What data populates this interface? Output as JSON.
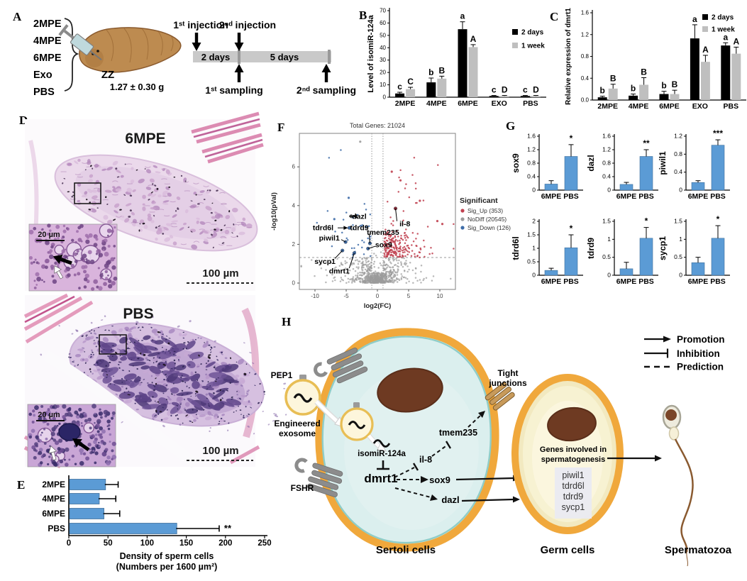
{
  "colors": {
    "bar_black": "#000000",
    "bar_gray": "#BFBFBF",
    "bar_blue": "#5B9BD5",
    "bar_blue_edge": "#41719C",
    "sig_up": "#C0404F",
    "no_diff": "#9B9B9B",
    "sig_down": "#3E6CA8",
    "membrane_orange": "#F0A83C",
    "sertoli_cytoplasm": "#CFE9E8",
    "germ_cytoplasm": "#F7F2D2",
    "nucleus_brown": "#6E3A22",
    "exosome_fill": "#FDF6DC",
    "exosome_border": "#E8BE55",
    "receptor_gray": "#8C8C8C"
  },
  "panels": {
    "a": "A",
    "b": "B",
    "c": "C",
    "d": "D",
    "e": "E",
    "f": "F",
    "g": "G",
    "h": "H"
  },
  "panel_a": {
    "groups": [
      "2MPE",
      "4MPE",
      "6MPE",
      "Exo",
      "PBS"
    ],
    "genotype": "ZZ",
    "weight": "1.27 ± 0.30 g",
    "timeline": {
      "injection1": "1ˢᵗ injection",
      "injection2": "2ⁿᵈ injection",
      "sampling1": "1ˢᵗ sampling",
      "sampling2": "2ⁿᵈ sampling",
      "phase1": "2 days",
      "phase2": "5 days"
    }
  },
  "panel_d": {
    "top_title": "6MPE",
    "bottom_title": "PBS",
    "inset_scale_top": "20 µm",
    "inset_scale_bottom": "20 µm",
    "scale_bar_top": "100 µm",
    "scale_bar_bottom": "100 µm"
  },
  "panel_h": {
    "pep1": "PEP1",
    "engineered_exosome_line1": "Engineered",
    "engineered_exosome_line2": "exosome",
    "fshr": "FSHR",
    "isomir": "isomiR-124a",
    "dmrt1": "dmrt1",
    "il8": "il-8",
    "tmem235": "tmem235",
    "tight_junctions_line1": "Tight",
    "tight_junctions_line2": "junctions",
    "sox9": "sox9",
    "dazl": "dazl",
    "genes_line1": "Genes involved in",
    "genes_line2": "spermatogenesis",
    "gene_list": [
      "piwil1",
      "tdrd6l",
      "tdrd9",
      "sycp1"
    ],
    "sertoli_label": "Sertoli cells",
    "germ_label": "Germ cells",
    "sperm_label": "Spermatozoa",
    "legend": [
      {
        "symbol": "arrow",
        "label": "Promotion"
      },
      {
        "symbol": "tbar",
        "label": "Inhibition"
      },
      {
        "symbol": "dashed",
        "label": "Prediction"
      }
    ]
  },
  "chart_data": [
    {
      "id": "B",
      "type": "bar",
      "ylabel": "Level of isomiR-124a",
      "categories": [
        "2MPE",
        "4MPE",
        "6MPE",
        "EXO",
        "PBS"
      ],
      "series": [
        {
          "name": "2 days",
          "color": "#000000",
          "values": [
            3,
            12,
            55,
            1,
            1
          ],
          "errors": [
            1,
            3.5,
            6,
            0.4,
            0.4
          ],
          "letters": [
            "c",
            "b",
            "a",
            "c",
            "c"
          ]
        },
        {
          "name": "1 week",
          "color": "#BFBFBF",
          "values": [
            6.5,
            15,
            40.5,
            1,
            1
          ],
          "errors": [
            1.5,
            2,
            2,
            0.4,
            0.4
          ],
          "letters": [
            "C",
            "B",
            "A",
            "D",
            "D"
          ]
        }
      ],
      "ylim": [
        0,
        70
      ],
      "yticks": [
        0,
        10,
        20,
        30,
        40,
        50,
        60,
        70
      ],
      "tick_decimals": 0,
      "legend_position": "top-right",
      "grid": false
    },
    {
      "id": "C",
      "type": "bar",
      "ylabel": "Relative expression of dmrt1",
      "categories": [
        "2MPE",
        "4MPE",
        "6MPE",
        "EXO",
        "PBS"
      ],
      "series": [
        {
          "name": "2 days",
          "color": "#000000",
          "values": [
            0.05,
            0.08,
            0.11,
            1.13,
            1.0
          ],
          "errors": [
            0.02,
            0.03,
            0.05,
            0.25,
            0.05
          ],
          "letters": [
            "b",
            "b",
            "b",
            "a",
            "a"
          ]
        },
        {
          "name": "1 week",
          "color": "#BFBFBF",
          "values": [
            0.21,
            0.28,
            0.11,
            0.7,
            0.85
          ],
          "errors": [
            0.08,
            0.13,
            0.07,
            0.12,
            0.12
          ],
          "letters": [
            "B",
            "B",
            "B",
            "A",
            "A"
          ]
        }
      ],
      "ylim": [
        0,
        1.6
      ],
      "yticks": [
        0,
        0.4,
        0.8,
        1.2,
        1.6
      ],
      "tick_decimals": 1,
      "legend_position": "top-right",
      "grid": false
    },
    {
      "id": "E",
      "type": "bar",
      "orientation": "horizontal",
      "categories": [
        "2MPE",
        "4MPE",
        "6MPE",
        "PBS"
      ],
      "values": [
        46,
        38,
        44,
        137
      ],
      "errors": [
        17,
        22,
        21,
        55
      ],
      "sig": [
        "",
        "",
        "",
        "**"
      ],
      "xlim": [
        0,
        250
      ],
      "xticks": [
        0,
        50,
        100,
        150,
        200,
        250
      ],
      "xlabel_line1": "Density of sperm cells",
      "xlabel_line2": "(Numbers per 1600 µm²)",
      "grid": false
    },
    {
      "id": "F",
      "type": "scatter",
      "subtype": "volcano",
      "title": "Total Genes: 21024",
      "xlabel": "log2(FC)",
      "ylabel": "-log10(pVal)",
      "xlim": [
        -12.5,
        12.5
      ],
      "xticks": [
        -10,
        -5,
        0,
        5,
        10
      ],
      "ylim": [
        0,
        7.7
      ],
      "yticks": [
        0,
        2,
        4,
        6
      ],
      "fc_threshold": 0.9,
      "pval_threshold": 1.32,
      "legend_title": "Significant",
      "legend": [
        {
          "label": "Sig_Up (353)",
          "color": "#C0404F"
        },
        {
          "label": "NoDiff (20545)",
          "color": "#9B9B9B"
        },
        {
          "label": "Sig_Down (126)",
          "color": "#3E6CA8"
        }
      ],
      "display_points": {
        "nodiff": 950,
        "extra_up": 130,
        "seed": 77
      },
      "outliers": [
        {
          "x": -2.75,
          "y": 7.3,
          "class": "nodiff"
        },
        {
          "x": 2.3,
          "y": 5.75,
          "class": "up"
        },
        {
          "x": 3.7,
          "y": 5.3,
          "class": "up"
        },
        {
          "x": 6.8,
          "y": 4.25,
          "class": "up"
        },
        {
          "x": -4.6,
          "y": 4.4,
          "class": "down"
        },
        {
          "x": -6.9,
          "y": 3.3,
          "class": "down"
        },
        {
          "x": 9.6,
          "y": 3.2,
          "class": "up"
        },
        {
          "x": 10.4,
          "y": 3.05,
          "class": "up"
        }
      ],
      "gene_labels": [
        {
          "name": "dazl",
          "lx": -2.9,
          "ly": 3.45,
          "px": -4.2,
          "py": 3.45,
          "style": "arrowleft",
          "pcolor": "#555555"
        },
        {
          "name": "il-8",
          "lx": 4.4,
          "ly": 3.05,
          "px": 2.9,
          "py": 3.85,
          "style": "line",
          "pcolor": "#8B2E3C"
        },
        {
          "name": "tdrd6l",
          "lx": -8.7,
          "ly": 2.85,
          "px": -4.5,
          "py": 2.85,
          "style": "arrowright",
          "pcolor": "#3E6CA8"
        },
        {
          "name": "tdrd9",
          "lx": -2.9,
          "ly": 2.85,
          "style": "none"
        },
        {
          "name": "tmem235",
          "lx": 0.9,
          "ly": 2.62,
          "px": -1.2,
          "py": 2.05,
          "style": "line",
          "pcolor": "#3E6CA8"
        },
        {
          "name": "piwil1",
          "lx": -7.7,
          "ly": 2.32,
          "px": -5.1,
          "py": 2.12,
          "style": "line",
          "pcolor": "#3E6CA8"
        },
        {
          "name": "sox9",
          "lx": 1.0,
          "ly": 1.98,
          "px": -1.5,
          "py": 1.78,
          "style": "line",
          "pcolor": "#3E6CA8"
        },
        {
          "name": "sycp1",
          "lx": -8.4,
          "ly": 1.12,
          "px": -5.6,
          "py": 1.68,
          "style": "line",
          "pcolor": "#3E6CA8"
        },
        {
          "name": "dmrt1",
          "lx": -6.1,
          "ly": 0.62,
          "px": -3.7,
          "py": 1.55,
          "style": "line",
          "pcolor": "#3E6CA8"
        }
      ]
    },
    {
      "id": "G",
      "type": "bar",
      "subtype": "mini-grid",
      "categories": [
        "6MPE",
        "PBS"
      ],
      "bar_color": "#5B9BD5",
      "charts": [
        {
          "gene": "sox9",
          "ylim": [
            0,
            1.6
          ],
          "yticks": [
            0,
            0.4,
            0.8,
            1.2,
            1.6
          ],
          "values": [
            0.18,
            1.0
          ],
          "errors": [
            0.1,
            0.35
          ],
          "sig": "*"
        },
        {
          "gene": "dazl",
          "ylim": [
            0,
            1.6
          ],
          "yticks": [
            0,
            0.4,
            0.8,
            1.2,
            1.6
          ],
          "values": [
            0.17,
            1.0
          ],
          "errors": [
            0.06,
            0.2
          ],
          "sig": "**"
        },
        {
          "gene": "piwil1",
          "ylim": [
            0,
            1.2
          ],
          "yticks": [
            0,
            0.4,
            0.8,
            1.2
          ],
          "values": [
            0.17,
            1.0
          ],
          "errors": [
            0.04,
            0.12
          ],
          "sig": "***"
        },
        {
          "gene": "tdrd6l",
          "ylim": [
            0,
            2
          ],
          "yticks": [
            0,
            0.5,
            1,
            1.5,
            2
          ],
          "values": [
            0.18,
            1.02
          ],
          "errors": [
            0.08,
            0.48
          ],
          "sig": "*"
        },
        {
          "gene": "tdrd9",
          "ylim": [
            0,
            1.5
          ],
          "yticks": [
            0,
            0.5,
            1,
            1.5
          ],
          "values": [
            0.18,
            1.03
          ],
          "errors": [
            0.18,
            0.3
          ],
          "sig": "*"
        },
        {
          "gene": "sycp1",
          "ylim": [
            0,
            1.5
          ],
          "yticks": [
            0,
            0.5,
            1,
            1.5
          ],
          "values": [
            0.35,
            1.03
          ],
          "errors": [
            0.15,
            0.35
          ],
          "sig": "*"
        }
      ]
    }
  ]
}
